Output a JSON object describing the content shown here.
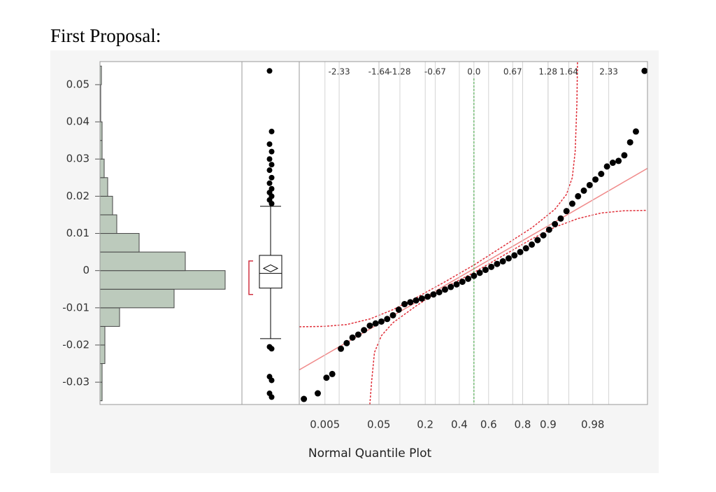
{
  "title": "First Proposal:",
  "chart_data": [
    {
      "type": "histogram",
      "bins": [
        -0.035,
        -0.03,
        -0.025,
        -0.02,
        -0.015,
        -0.01,
        -0.005,
        0,
        0.005,
        0.01,
        0.015,
        0.02,
        0.025,
        0.03,
        0.035,
        0.04,
        0.045,
        0.05,
        0.055
      ],
      "counts": [
        3,
        3,
        7,
        7,
        28,
        106,
        179,
        122,
        56,
        24,
        18,
        11,
        6,
        3,
        3,
        1,
        1,
        2
      ],
      "color": "#bccabc",
      "xlim": [
        0,
        203
      ],
      "ylim": [
        -0.036,
        0.0562
      ],
      "yticks": [
        0.05,
        0.04,
        0.03,
        0.02,
        0.01,
        0,
        -0.01,
        -0.02,
        -0.03
      ]
    },
    {
      "type": "box",
      "ylim": [
        -0.036,
        0.0562
      ],
      "whisker_low": -0.0183,
      "q1": -0.0047,
      "median": -0.00075,
      "q3": 0.0041,
      "whisker_high": 0.0173,
      "mean": 0.0006,
      "shortest_half": [
        -0.0064,
        0.0026
      ],
      "outliers": [
        0.0537,
        0.0374,
        0.034,
        0.032,
        0.03,
        0.0285,
        0.027,
        0.025,
        0.0235,
        0.022,
        0.021,
        0.02,
        0.019,
        0.018,
        -0.0205,
        -0.021,
        -0.0285,
        -0.0295,
        -0.033,
        -0.034
      ]
    },
    {
      "type": "scatter",
      "xlabel": "Normal Quantile Plot",
      "xlim": [
        -3.02,
        3.0
      ],
      "ylim": [
        -0.036,
        0.0562
      ],
      "xticks": [
        -2.33,
        -1.64,
        -1.28,
        -0.67,
        {
          "value": 0,
          "label": "0.0"
        },
        0.67,
        1.28,
        1.64,
        2.33
      ],
      "prob_ticks": [
        {
          "value": -2.576,
          "label": "0.005"
        },
        {
          "value": -1.645,
          "label": "0.05"
        },
        {
          "value": -0.842,
          "label": "0.2"
        },
        {
          "value": -0.253,
          "label": "0.4"
        },
        {
          "value": 0.253,
          "label": "0.6"
        },
        {
          "value": 0.842,
          "label": "0.8"
        },
        {
          "value": 1.282,
          "label": "0.9"
        },
        {
          "value": 2.054,
          "label": "0.98"
        }
      ],
      "center_line": {
        "value": 0,
        "color": "#3aa63a"
      },
      "fit_line": {
        "intercept": 0.0005,
        "slope": 0.009,
        "color": "#f08a8a"
      },
      "band_color": "#e0303a",
      "upper_band": {
        "x": [
          -3.02,
          -2.6,
          -2.2,
          -1.8,
          -1.4,
          -1.0,
          -0.5,
          0,
          0.5,
          1.0,
          1.4,
          1.6,
          1.7,
          1.75,
          1.78,
          1.79
        ],
        "y": [
          -0.0151,
          -0.015,
          -0.0145,
          -0.013,
          -0.0105,
          -0.0073,
          -0.003,
          0.0015,
          0.0065,
          0.0115,
          0.0165,
          0.0205,
          0.025,
          0.032,
          0.045,
          0.0562
        ]
      },
      "lower_band": {
        "x": [
          -1.8,
          -1.77,
          -1.72,
          -1.6,
          -1.4,
          -1.0,
          -0.5,
          0,
          0.5,
          1.0,
          1.4,
          1.8,
          2.2,
          2.6,
          3.0
        ],
        "y": [
          -0.036,
          -0.03,
          -0.022,
          -0.0175,
          -0.014,
          -0.0095,
          -0.0045,
          -0.0005,
          0.004,
          0.0085,
          0.0117,
          0.014,
          0.0155,
          0.0161,
          0.0162
        ]
      },
      "color": "#000000",
      "x": [
        -2.94,
        -2.7,
        -2.55,
        -2.45,
        -2.3,
        -2.2,
        -2.1,
        -2.0,
        -1.9,
        -1.8,
        -1.7,
        -1.6,
        -1.5,
        -1.4,
        -1.3,
        -1.2,
        -1.1,
        -1.0,
        -0.9,
        -0.8,
        -0.7,
        -0.6,
        -0.5,
        -0.4,
        -0.3,
        -0.2,
        -0.1,
        0,
        0.1,
        0.2,
        0.3,
        0.4,
        0.5,
        0.6,
        0.7,
        0.8,
        0.9,
        1.0,
        1.1,
        1.2,
        1.3,
        1.4,
        1.5,
        1.6,
        1.7,
        1.8,
        1.9,
        2.0,
        2.1,
        2.2,
        2.3,
        2.4,
        2.5,
        2.6,
        2.7,
        2.8,
        2.95
      ],
      "values": [
        -0.0345,
        -0.033,
        -0.0288,
        -0.0278,
        -0.021,
        -0.0195,
        -0.018,
        -0.0172,
        -0.016,
        -0.0148,
        -0.0142,
        -0.0137,
        -0.013,
        -0.012,
        -0.0105,
        -0.009,
        -0.0085,
        -0.008,
        -0.0075,
        -0.007,
        -0.0064,
        -0.0058,
        -0.0051,
        -0.0044,
        -0.0037,
        -0.003,
        -0.0022,
        -0.0014,
        -0.0006,
        0.0002,
        0.001,
        0.0018,
        0.0025,
        0.0033,
        0.0041,
        0.005,
        0.006,
        0.007,
        0.0082,
        0.0095,
        0.011,
        0.0125,
        0.014,
        0.016,
        0.018,
        0.02,
        0.0215,
        0.023,
        0.0245,
        0.026,
        0.028,
        0.029,
        0.0295,
        0.031,
        0.0345,
        0.0374,
        0.0537
      ]
    }
  ]
}
